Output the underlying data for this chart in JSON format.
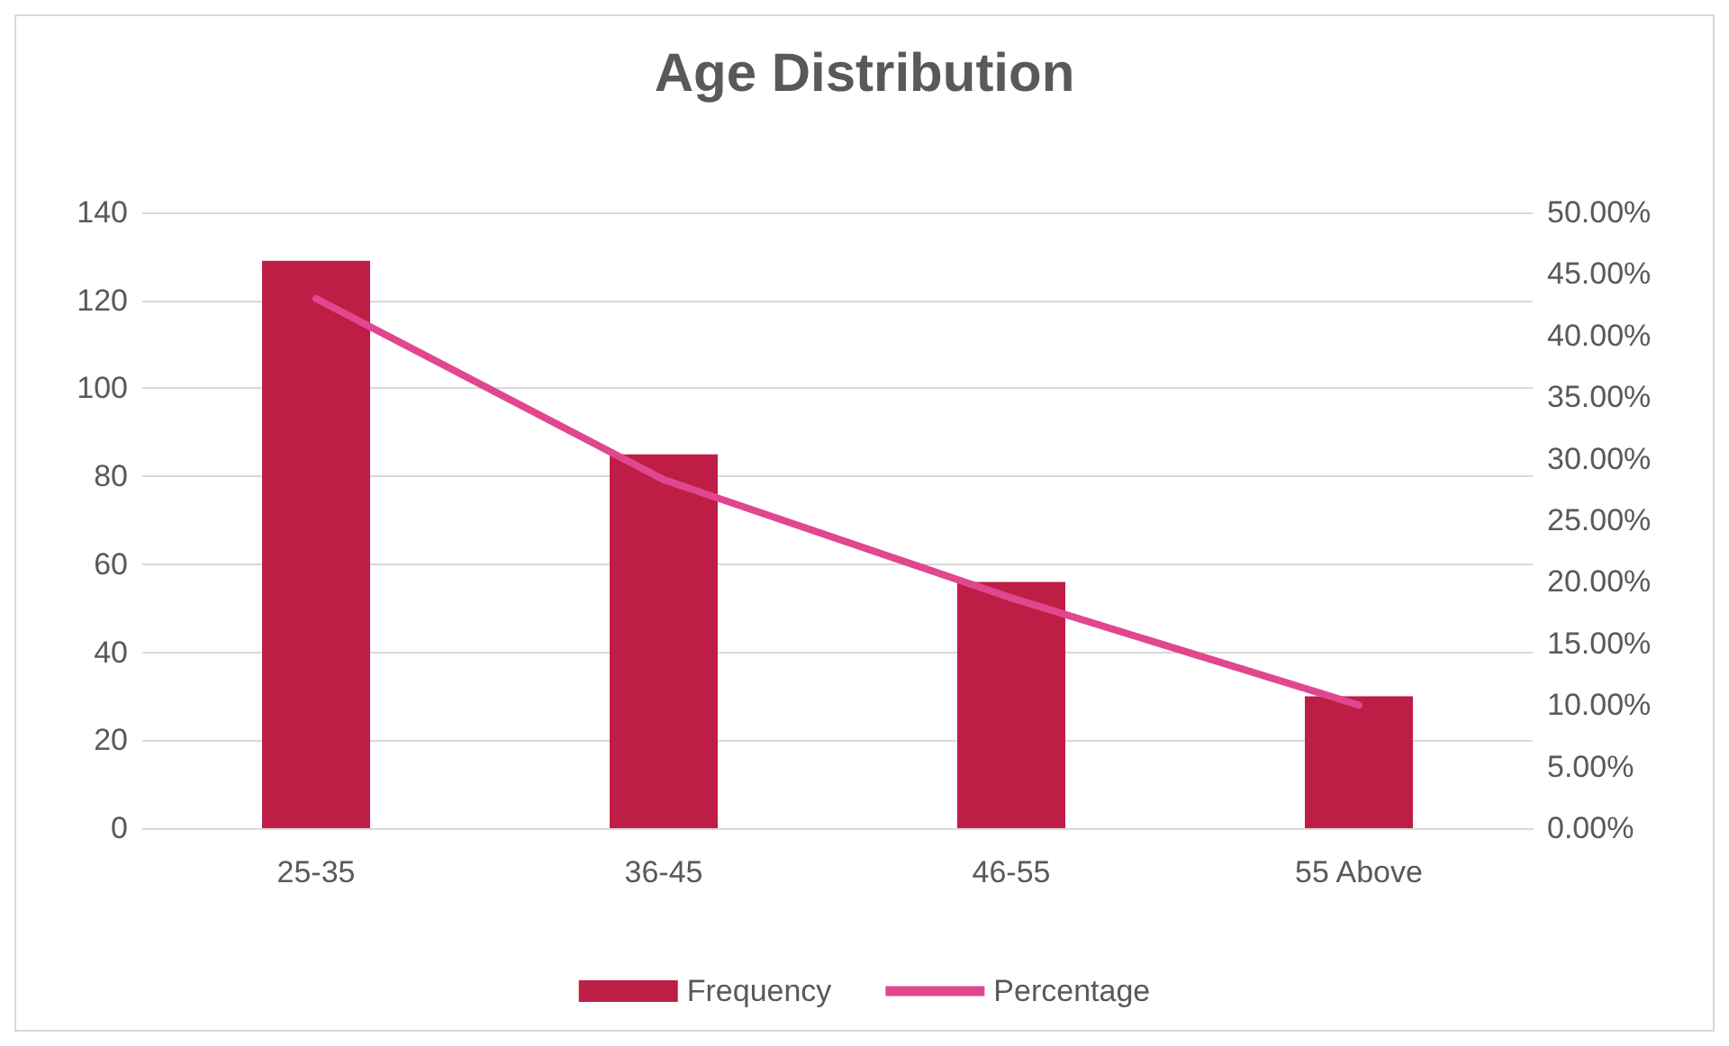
{
  "chart_data": {
    "type": "bar",
    "title": "Age Distribution",
    "categories": [
      "25-35",
      "36-45",
      "46-55",
      "55 Above"
    ],
    "series": [
      {
        "name": "Frequency",
        "color": "#be1e45",
        "values": [
          129,
          85,
          56,
          30
        ]
      },
      {
        "name": "Percentage",
        "type": "line",
        "axis": "y2",
        "color": "#e0478e",
        "values": [
          43,
          28.3,
          18.7,
          10
        ]
      }
    ],
    "ylim": [
      0,
      140
    ],
    "yticks": [
      0,
      20,
      40,
      60,
      80,
      100,
      120,
      140
    ],
    "y2lim": [
      0,
      50
    ],
    "y2ticks": [
      {
        "value": 0,
        "label": "0.00%"
      },
      {
        "value": 5,
        "label": "5.00%"
      },
      {
        "value": 10,
        "label": "10.00%"
      },
      {
        "value": 15,
        "label": "15.00%"
      },
      {
        "value": 20,
        "label": "20.00%"
      },
      {
        "value": 25,
        "label": "25.00%"
      },
      {
        "value": 30,
        "label": "30.00%"
      },
      {
        "value": 35,
        "label": "35.00%"
      },
      {
        "value": 40,
        "label": "40.00%"
      },
      {
        "value": 45,
        "label": "45.00%"
      },
      {
        "value": 50,
        "label": "50.00%"
      }
    ],
    "grid": "y",
    "legend": "bottom",
    "marker": "none",
    "line_style": "solid"
  }
}
